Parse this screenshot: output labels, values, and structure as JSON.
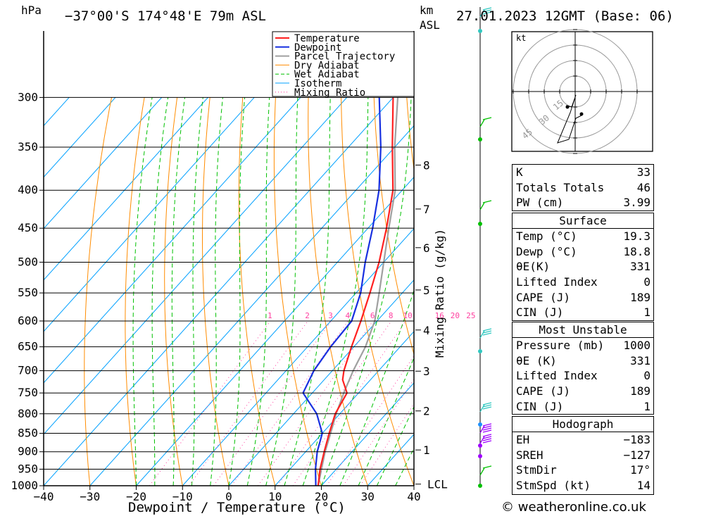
{
  "header": {
    "pressure_unit": "hPa",
    "location": "-37°00'S 174°48'E 79m ASL",
    "height_unit": "km",
    "height_unit_sub": "ASL",
    "datetime": "27.01.2023 12GMT (Base: 06)"
  },
  "legend": [
    "Temperature",
    "Dewpoint",
    "Parcel Trajectory",
    "Dry Adiabat",
    "Wet Adiabat",
    "Isotherm",
    "Mixing Ratio"
  ],
  "colors": {
    "temperature": "#ff2020",
    "dewpoint": "#1830e0",
    "parcel": "#a0a0a0",
    "dry_adiabat": "#ff8c00",
    "wet_adiabat": "#00c000",
    "isotherm": "#00a0ff",
    "mixing_ratio": "#ff40a0",
    "wind_barb_high": "#30c8c0",
    "wind_barb_low": "#a000ff"
  },
  "chart_data": {
    "type": "line",
    "title": "",
    "xlabel": "Dewpoint / Temperature (°C)",
    "ylabel": "hPa",
    "x_ticks": [
      -40,
      -30,
      -20,
      -10,
      0,
      10,
      20,
      30,
      40
    ],
    "pressure_levels": [
      300,
      350,
      400,
      450,
      500,
      550,
      600,
      650,
      700,
      750,
      800,
      850,
      900,
      950,
      1000
    ],
    "height_axis": {
      "label": "Mixing Ratio (g/kg)",
      "ticks": [
        {
          "km": "8",
          "p": 370
        },
        {
          "km": "7",
          "p": 424
        },
        {
          "km": "6",
          "p": 478
        },
        {
          "km": "5",
          "p": 545
        },
        {
          "km": "4",
          "p": 617
        },
        {
          "km": "3",
          "p": 701
        },
        {
          "km": "2",
          "p": 793
        },
        {
          "km": "1",
          "p": 895
        },
        {
          "km": "LCL",
          "p": 995
        }
      ]
    },
    "mixing_ratio_labels": [
      "1",
      "2",
      "3",
      "4",
      "6",
      "8",
      "10",
      "16",
      "20",
      "25"
    ],
    "series": [
      {
        "name": "Temperature",
        "points": [
          [
            1000,
            19.3
          ],
          [
            950,
            16.5
          ],
          [
            900,
            14.0
          ],
          [
            850,
            11.5
          ],
          [
            800,
            9.0
          ],
          [
            750,
            7.5
          ],
          [
            720,
            4.0
          ],
          [
            700,
            2.5
          ],
          [
            650,
            -0.5
          ],
          [
            600,
            -3.5
          ],
          [
            550,
            -7.0
          ],
          [
            500,
            -11.0
          ],
          [
            450,
            -16.0
          ],
          [
            400,
            -22.0
          ],
          [
            350,
            -30.5
          ],
          [
            300,
            -40.0
          ]
        ]
      },
      {
        "name": "Dewpoint",
        "points": [
          [
            1000,
            18.8
          ],
          [
            950,
            15.5
          ],
          [
            900,
            12.5
          ],
          [
            850,
            10.0
          ],
          [
            800,
            5.0
          ],
          [
            750,
            -2.0
          ],
          [
            700,
            -4.0
          ],
          [
            650,
            -5.0
          ],
          [
            600,
            -5.5
          ],
          [
            550,
            -9.0
          ],
          [
            500,
            -14.0
          ],
          [
            450,
            -19.0
          ],
          [
            400,
            -25.0
          ],
          [
            350,
            -33.0
          ],
          [
            300,
            -43.0
          ]
        ]
      },
      {
        "name": "Parcel Trajectory",
        "points": [
          [
            1000,
            19.3
          ],
          [
            950,
            16.8
          ],
          [
            900,
            14.2
          ],
          [
            850,
            11.8
          ],
          [
            800,
            9.2
          ],
          [
            750,
            6.8
          ],
          [
            700,
            4.5
          ],
          [
            650,
            2.5
          ],
          [
            600,
            -0.5
          ],
          [
            550,
            -5.0
          ],
          [
            500,
            -10.0
          ],
          [
            450,
            -15.5
          ],
          [
            400,
            -21.5
          ],
          [
            350,
            -30.0
          ],
          [
            300,
            -39.0
          ]
        ]
      }
    ]
  },
  "hodograph": {
    "unit_label": "kt",
    "ring_labels": [
      "15",
      "30",
      "45"
    ]
  },
  "indices": [
    {
      "label": "K",
      "value": "33"
    },
    {
      "label": "Totals Totals",
      "value": "46"
    },
    {
      "label": "PW (cm)",
      "value": "3.99"
    }
  ],
  "surface": {
    "title": "Surface",
    "rows": [
      {
        "label": "Temp (°C)",
        "value": "19.3"
      },
      {
        "label": "Dewp (°C)",
        "value": "18.8"
      },
      {
        "label": "θE(K)",
        "value": "331"
      },
      {
        "label": "Lifted Index",
        "value": "0"
      },
      {
        "label": "CAPE (J)",
        "value": "189"
      },
      {
        "label": "CIN (J)",
        "value": "1"
      }
    ]
  },
  "most_unstable": {
    "title": "Most Unstable",
    "rows": [
      {
        "label": "Pressure (mb)",
        "value": "1000"
      },
      {
        "label": "θE (K)",
        "value": "331"
      },
      {
        "label": "Lifted Index",
        "value": "0"
      },
      {
        "label": "CAPE (J)",
        "value": "189"
      },
      {
        "label": "CIN (J)",
        "value": "1"
      }
    ]
  },
  "hodograph_table": {
    "title": "Hodograph",
    "rows": [
      {
        "label": "EH",
        "value": "-183"
      },
      {
        "label": "SREH",
        "value": "-127"
      },
      {
        "label": "StmDir",
        "value": "17°"
      },
      {
        "label": "StmSpd (kt)",
        "value": "14"
      }
    ]
  },
  "footer": "© weatheronline.co.uk"
}
